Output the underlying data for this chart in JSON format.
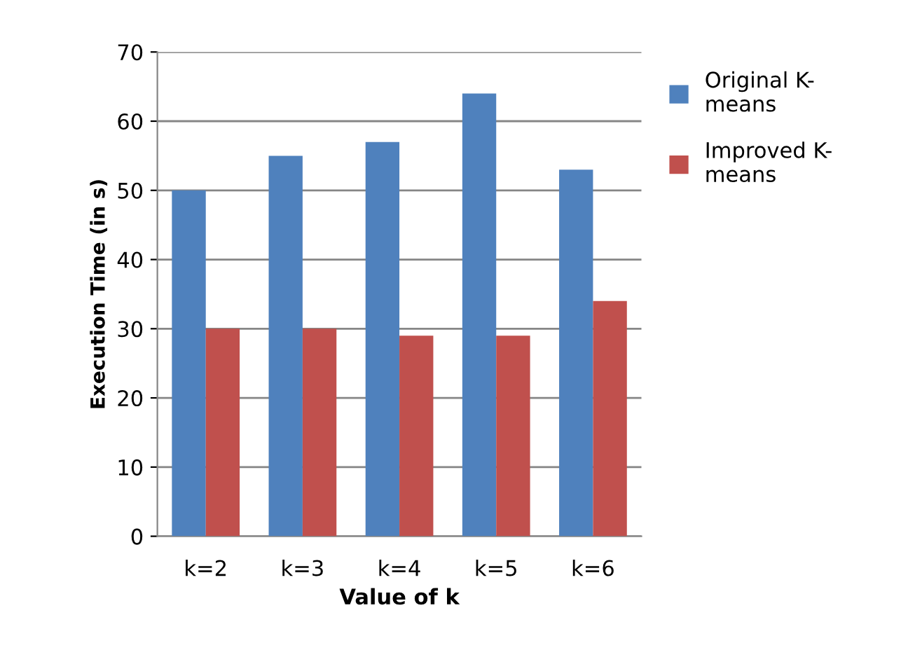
{
  "chart_data": {
    "type": "bar",
    "xlabel": "Value of k",
    "ylabel": "Execution Time (in s)",
    "categories": [
      "k=2",
      "k=3",
      "k=4",
      "k=5",
      "k=6"
    ],
    "series": [
      {
        "name": "Original K-\nmeans",
        "color": "#4f81bd",
        "values": [
          50,
          55,
          57,
          64,
          53
        ]
      },
      {
        "name": "Improved K-\nmeans",
        "color": "#c0504d",
        "values": [
          30,
          30,
          29,
          29,
          34
        ]
      }
    ],
    "ylim": [
      0,
      70
    ],
    "yticks": [
      0,
      10,
      20,
      30,
      40,
      50,
      60,
      70
    ],
    "grid": "y",
    "legend": "right"
  }
}
